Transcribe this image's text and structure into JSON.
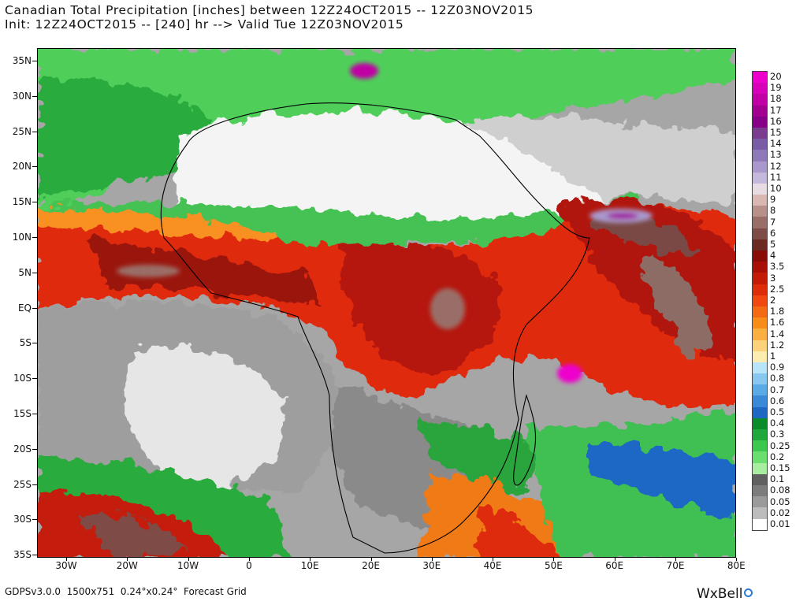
{
  "title": {
    "line1": "Canadian Total Precipitation [inches] between 12Z24OCT2015 -- 12Z03NOV2015",
    "line2": "Init: 12Z24OCT2015 -- [240] hr --> Valid Tue 12Z03NOV2015"
  },
  "axes": {
    "lat_labels": [
      "35N",
      "30N",
      "25N",
      "20N",
      "15N",
      "10N",
      "5N",
      "EQ",
      "5S",
      "10S",
      "15S",
      "20S",
      "25S",
      "30S",
      "35S"
    ],
    "lon_labels": [
      "30W",
      "20W",
      "10W",
      "0",
      "10E",
      "20E",
      "30E",
      "40E",
      "50E",
      "60E",
      "70E",
      "80E"
    ]
  },
  "colorbar": {
    "unit": "inches",
    "levels": [
      {
        "label": "20",
        "color": "#ee00cc"
      },
      {
        "label": "19",
        "color": "#d800b8"
      },
      {
        "label": "18",
        "color": "#c000a4"
      },
      {
        "label": "17",
        "color": "#a40090"
      },
      {
        "label": "16",
        "color": "#880088"
      },
      {
        "label": "15",
        "color": "#7a3c8e"
      },
      {
        "label": "14",
        "color": "#7a5ca6"
      },
      {
        "label": "13",
        "color": "#8e7ab8"
      },
      {
        "label": "12",
        "color": "#a898cc"
      },
      {
        "label": "11",
        "color": "#c4b8dc"
      },
      {
        "label": "10",
        "color": "#e8dce4"
      },
      {
        "label": "9",
        "color": "#d8b8b0"
      },
      {
        "label": "8",
        "color": "#b8908a"
      },
      {
        "label": "7",
        "color": "#9a6e68"
      },
      {
        "label": "6",
        "color": "#7e4c46"
      },
      {
        "label": "5",
        "color": "#6a2a22"
      },
      {
        "label": "4",
        "color": "#8a0c06"
      },
      {
        "label": "3.5",
        "color": "#a81006"
      },
      {
        "label": "3",
        "color": "#c41a08"
      },
      {
        "label": "2.5",
        "color": "#de2c0a"
      },
      {
        "label": "2",
        "color": "#f0480e"
      },
      {
        "label": "1.8",
        "color": "#f46a12"
      },
      {
        "label": "1.6",
        "color": "#f88c18"
      },
      {
        "label": "1.4",
        "color": "#fab040"
      },
      {
        "label": "1.2",
        "color": "#fcd27a"
      },
      {
        "label": "1",
        "color": "#fcecb0"
      },
      {
        "label": "0.9",
        "color": "#b8e4f8"
      },
      {
        "label": "0.8",
        "color": "#88c8f0"
      },
      {
        "label": "0.7",
        "color": "#5aaae6"
      },
      {
        "label": "0.6",
        "color": "#3a88d8"
      },
      {
        "label": "0.5",
        "color": "#1e68c4"
      },
      {
        "label": "0.4",
        "color": "#0a8c2a"
      },
      {
        "label": "0.3",
        "color": "#20a83a"
      },
      {
        "label": "0.25",
        "color": "#3cc84e"
      },
      {
        "label": "0.2",
        "color": "#6ade6e"
      },
      {
        "label": "0.15",
        "color": "#a8eea0"
      },
      {
        "label": "0.1",
        "color": "#606060"
      },
      {
        "label": "0.08",
        "color": "#7c7c7c"
      },
      {
        "label": "0.05",
        "color": "#9a9a9a"
      },
      {
        "label": "0.02",
        "color": "#bcbcbc"
      },
      {
        "label": "0.01",
        "color": "#ffffff"
      }
    ]
  },
  "footer": {
    "left": "GDPSv3.0.0  1500x751  0.24°x0.24°  Forecast Grid",
    "brand": "WxBell"
  }
}
